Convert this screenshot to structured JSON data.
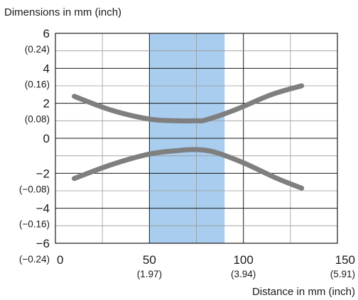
{
  "chart_data": {
    "type": "line",
    "title": "Dimensions in mm (inch)",
    "xlabel": "Distance in mm (inch)",
    "ylabel": "Dimensions in mm (inch)",
    "xlim": [
      0,
      150
    ],
    "ylim": [
      -6,
      6
    ],
    "grid": true,
    "x_ticks": [
      {
        "value": 0,
        "label": "0",
        "sub": ""
      },
      {
        "value": 50,
        "label": "50",
        "sub": "(1.97)"
      },
      {
        "value": 100,
        "label": "100",
        "sub": "(3.94)"
      },
      {
        "value": 150,
        "label": "150",
        "sub": "(5.91)"
      }
    ],
    "y_ticks": [
      {
        "value": 6,
        "label": "6",
        "sub": "(0.24)"
      },
      {
        "value": 4,
        "label": "4",
        "sub": "(0.16)"
      },
      {
        "value": 2,
        "label": "2",
        "sub": "(0.08)"
      },
      {
        "value": 0,
        "label": "0",
        "sub": ""
      },
      {
        "value": -2,
        "label": "−2",
        "sub": "(−0.08)"
      },
      {
        "value": -4,
        "label": "−4",
        "sub": "(−0.16)"
      },
      {
        "value": -6,
        "label": "−6",
        "sub": "(−0.24)"
      }
    ],
    "highlight_region": {
      "x_from": 50,
      "x_to": 90,
      "color": "#a9cdee"
    },
    "line_color": "#7f7f7f",
    "series": [
      {
        "values": [
          [
            10,
            2.4
          ],
          [
            30,
            1.6
          ],
          [
            50,
            1.1
          ],
          [
            65,
            1.0
          ],
          [
            75,
            1.0
          ],
          [
            80,
            1.05
          ],
          [
            95,
            1.6
          ],
          [
            115,
            2.5
          ],
          [
            131,
            3.0
          ]
        ]
      },
      {
        "values": [
          [
            10,
            -2.3
          ],
          [
            30,
            -1.5
          ],
          [
            50,
            -0.9
          ],
          [
            65,
            -0.7
          ],
          [
            75,
            -0.65
          ],
          [
            85,
            -0.8
          ],
          [
            100,
            -1.4
          ],
          [
            118,
            -2.3
          ],
          [
            131,
            -2.85
          ]
        ]
      }
    ]
  }
}
